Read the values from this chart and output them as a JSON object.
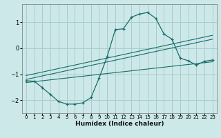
{
  "xlabel": "Humidex (Indice chaleur)",
  "background_color": "#cce8e8",
  "grid_color": "#aacccc",
  "line_color": "#1a6b6b",
  "xlim": [
    -0.5,
    23.5
  ],
  "ylim": [
    -2.5,
    1.7
  ],
  "yticks": [
    -2,
    -1,
    0,
    1
  ],
  "xticks": [
    0,
    1,
    2,
    3,
    4,
    5,
    6,
    7,
    8,
    9,
    10,
    11,
    12,
    13,
    14,
    15,
    16,
    17,
    18,
    19,
    20,
    21,
    22,
    23
  ],
  "curve_x": [
    0,
    1,
    2,
    3,
    4,
    5,
    6,
    7,
    8,
    9,
    10,
    11,
    12,
    13,
    14,
    15,
    16,
    17,
    18,
    19,
    20,
    21,
    22,
    23
  ],
  "curve_y": [
    -1.25,
    -1.27,
    -1.52,
    -1.78,
    -2.05,
    -2.15,
    -2.15,
    -2.1,
    -1.9,
    -1.15,
    -0.32,
    0.72,
    0.75,
    1.2,
    1.32,
    1.38,
    1.15,
    0.55,
    0.35,
    -0.38,
    -0.48,
    -0.65,
    -0.5,
    -0.45
  ],
  "line1_x": [
    0,
    23
  ],
  "line1_y": [
    -1.2,
    0.35
  ],
  "line2_x": [
    0,
    23
  ],
  "line2_y": [
    -1.05,
    0.5
  ],
  "line3_x": [
    0,
    23
  ],
  "line3_y": [
    -1.32,
    -0.52
  ]
}
